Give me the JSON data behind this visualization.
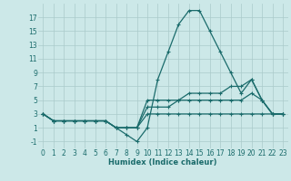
{
  "xlabel": "Humidex (Indice chaleur)",
  "bg_color": "#cce8e8",
  "grid_color": "#aacaca",
  "line_color": "#1a6b6b",
  "xlim": [
    -0.5,
    23.5
  ],
  "ylim": [
    -2,
    19
  ],
  "xticks": [
    0,
    1,
    2,
    3,
    4,
    5,
    6,
    7,
    8,
    9,
    10,
    11,
    12,
    13,
    14,
    15,
    16,
    17,
    18,
    19,
    20,
    21,
    22,
    23
  ],
  "yticks": [
    -1,
    1,
    3,
    5,
    7,
    9,
    11,
    13,
    15,
    17
  ],
  "series": [
    [
      3,
      2,
      2,
      2,
      2,
      2,
      2,
      1,
      0,
      -1,
      1,
      8,
      12,
      16,
      18,
      18,
      15,
      12,
      9,
      6,
      8,
      5,
      3,
      3
    ],
    [
      3,
      2,
      2,
      2,
      2,
      2,
      2,
      1,
      1,
      1,
      5,
      5,
      5,
      5,
      6,
      6,
      6,
      6,
      7,
      7,
      8,
      5,
      3,
      3
    ],
    [
      3,
      2,
      2,
      2,
      2,
      2,
      2,
      1,
      1,
      1,
      4,
      4,
      4,
      5,
      5,
      5,
      5,
      5,
      5,
      5,
      6,
      5,
      3,
      3
    ],
    [
      3,
      2,
      2,
      2,
      2,
      2,
      2,
      1,
      1,
      1,
      3,
      3,
      3,
      3,
      3,
      3,
      3,
      3,
      3,
      3,
      3,
      3,
      3,
      3
    ]
  ],
  "xlabel_fontsize": 6,
  "tick_fontsize": 5.5,
  "linewidth": 0.9,
  "markersize": 2.5
}
